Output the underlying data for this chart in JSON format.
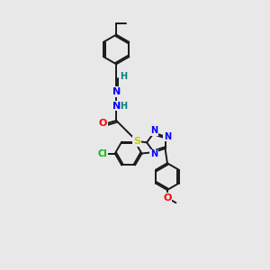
{
  "bg_color": "#e8e8e8",
  "bond_color": "#1a1a1a",
  "atom_colors": {
    "N": "#0000ff",
    "O": "#ff0000",
    "S": "#cccc00",
    "Cl": "#00bb00",
    "H": "#008080",
    "C": "#1a1a1a"
  },
  "figsize": [
    3.0,
    3.0
  ],
  "dpi": 100
}
